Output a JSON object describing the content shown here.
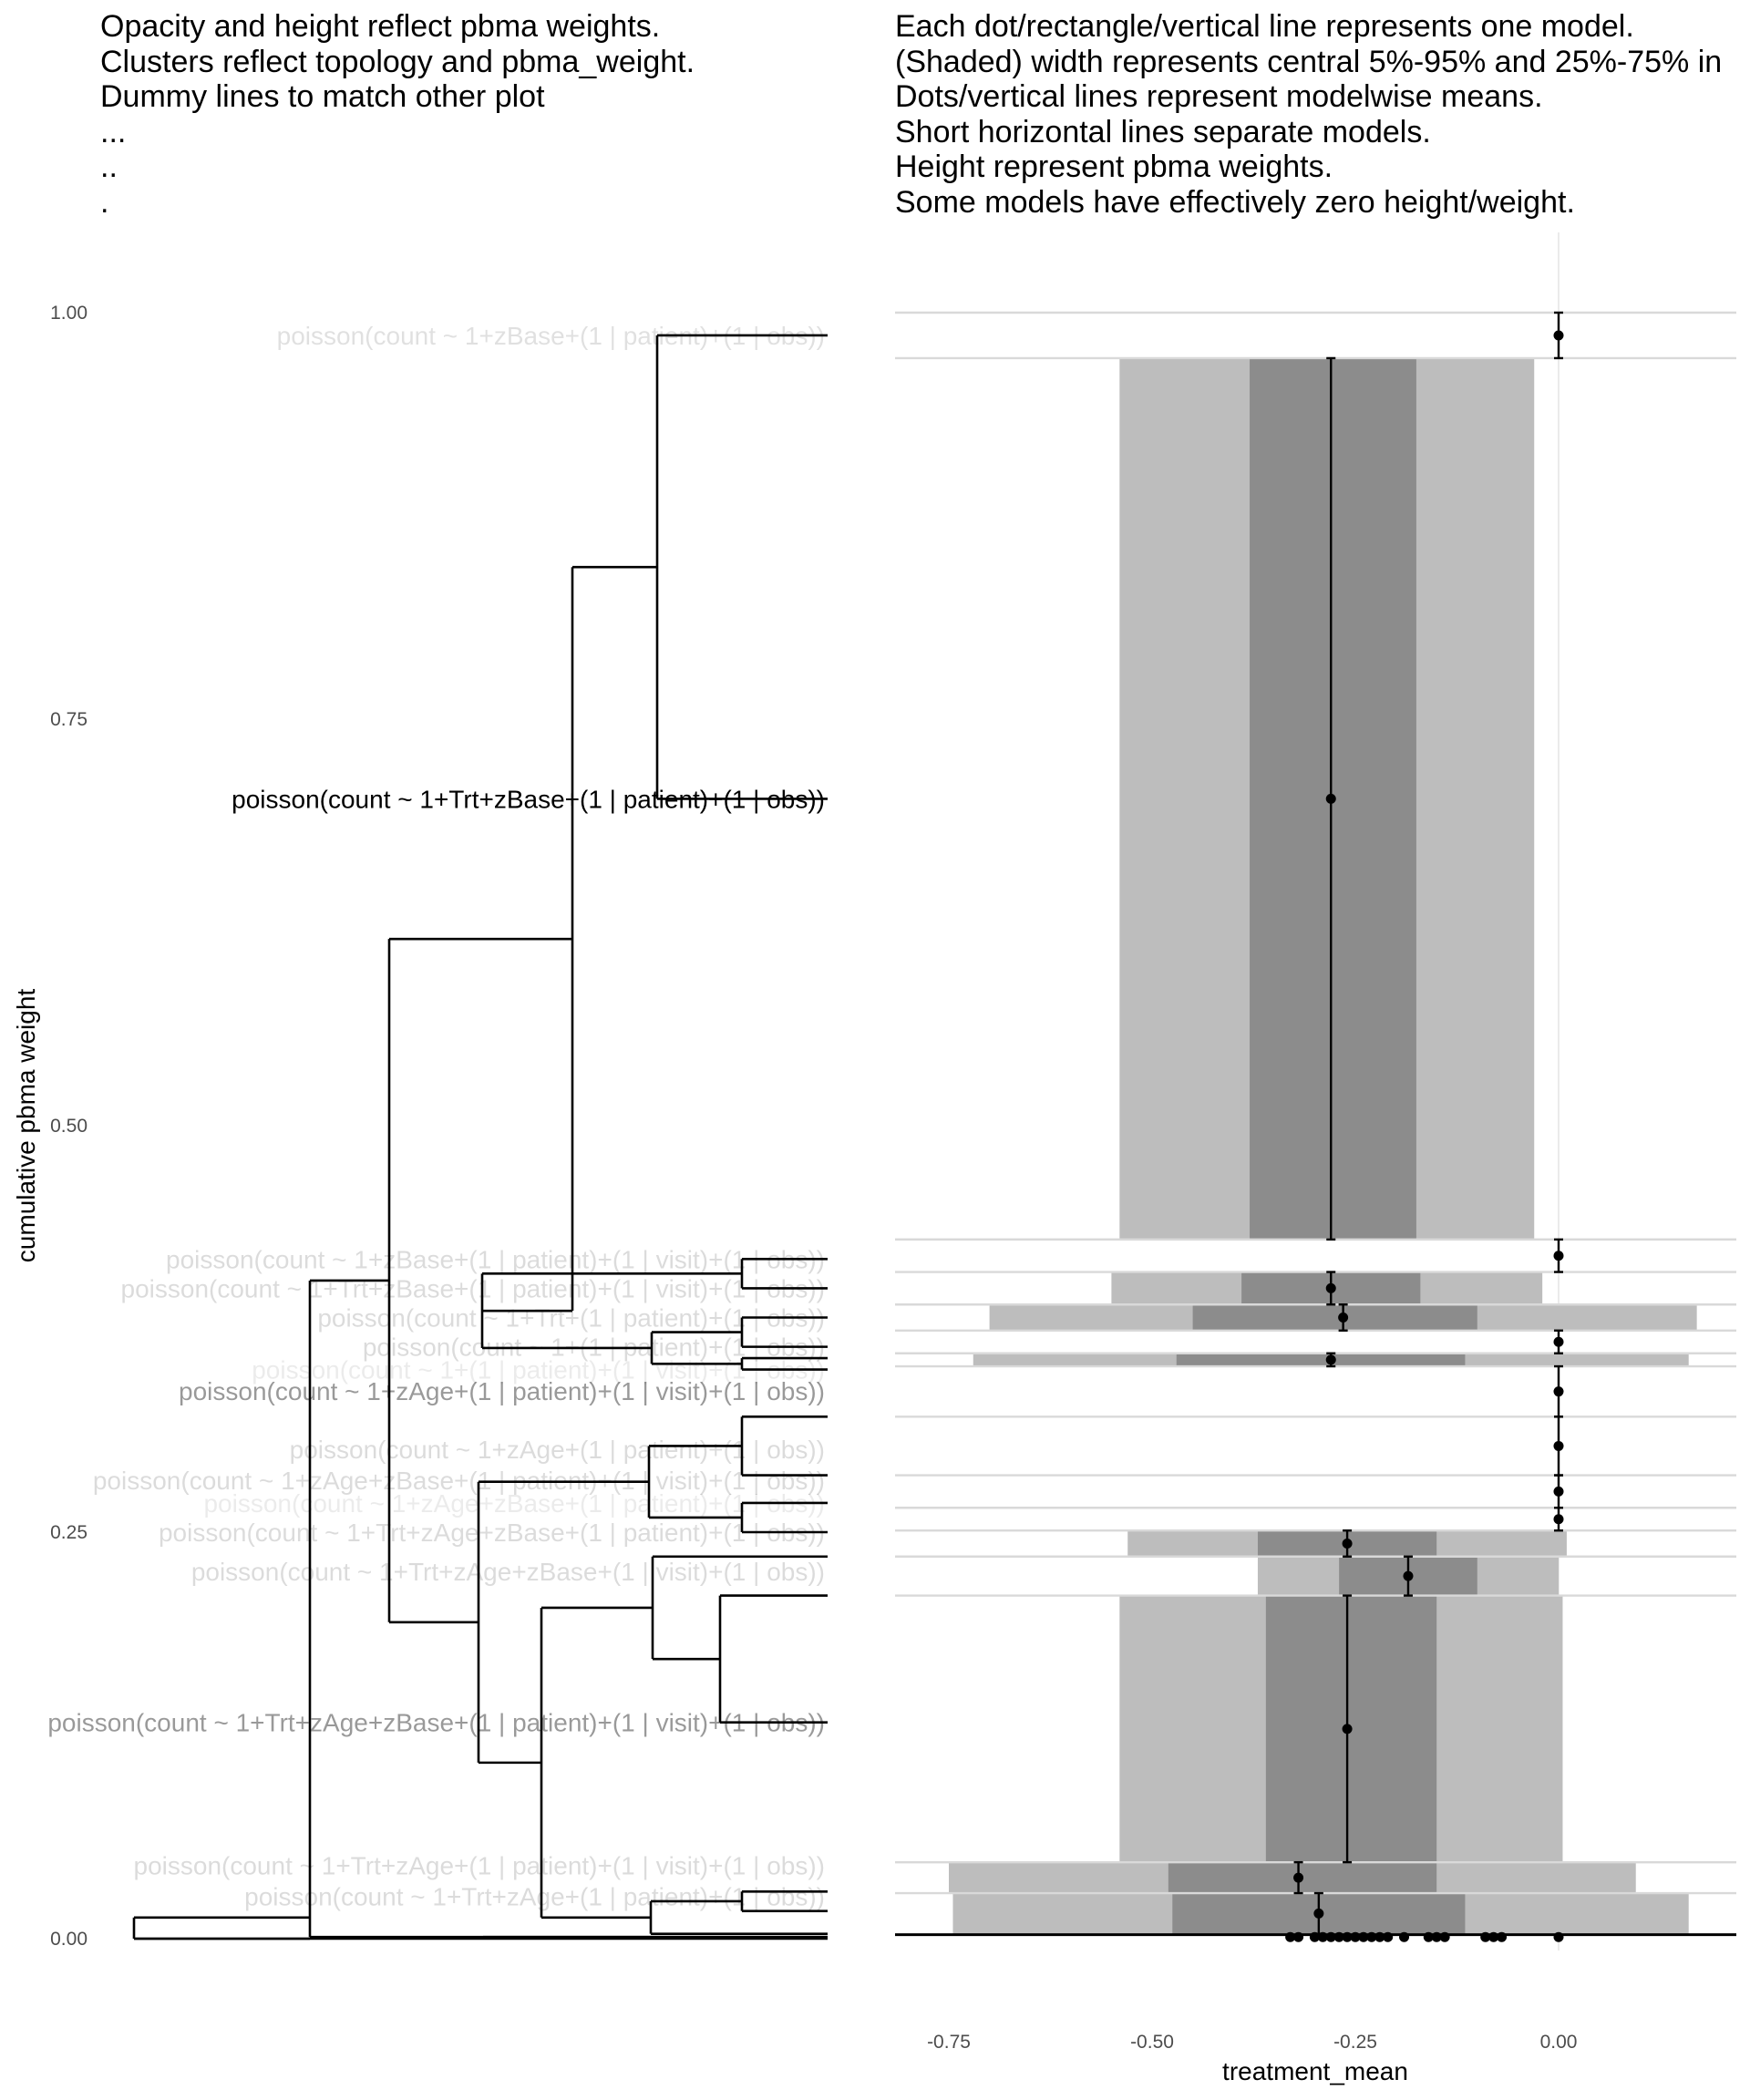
{
  "left_caption": [
    "Opacity and height reflect pbma weights.",
    "Clusters reflect topology and pbma_weight.",
    "Dummy lines to match other plot",
    "...",
    "..",
    "."
  ],
  "right_caption": [
    "Each dot/rectangle/vertical line represents one model.",
    "(Shaded) width represents central 5%-95% and 25%-75% in",
    "Dots/vertical lines represent modelwise means.",
    "Short horizontal lines separate models.",
    "Height represent pbma weights.",
    "Some models have effectively zero height/weight."
  ],
  "chart_data": [
    {
      "type": "dendrogram",
      "ylabel": "cumulative pbma weight",
      "ylim": [
        0,
        1.0
      ],
      "y_ticks": [
        "0.00",
        "0.25",
        "0.50",
        "0.75",
        "1.00"
      ],
      "grid": false,
      "leaves": [
        {
          "label": "poisson(count ~ 1+zBase+(1 | patient)+(1 | obs))",
          "y": 0.986,
          "alpha": 0.12
        },
        {
          "label": "poisson(count ~ 1+Trt+zBase+(1 | patient)+(1 | obs))",
          "y": 0.701,
          "alpha": 1.0
        },
        {
          "label": "poisson(count ~ 1+zBase+(1 | patient)+(1 | visit)+(1 | obs))",
          "y": 0.418,
          "alpha": 0.14
        },
        {
          "label": "poisson(count ~ 1+Trt+zBase+(1 | patient)+(1 | visit)+(1 | obs))",
          "y": 0.4,
          "alpha": 0.14
        },
        {
          "label": "poisson(count ~ 1+Trt+(1 | patient)+(1 | obs))",
          "y": 0.382,
          "alpha": 0.14
        },
        {
          "label": "poisson(count ~ 1+(1 | patient)+(1 | obs))",
          "y": 0.364,
          "alpha": 0.14
        },
        {
          "label": "poisson(count ~ 1+(1 | patient)+(1 | visit)+(1 | obs))",
          "y": 0.35,
          "alpha": 0.08
        },
        {
          "label": "poisson(count ~ 1+zAge+(1 | patient)+(1 | visit)+(1 | obs))",
          "y": 0.337,
          "alpha": 0.4
        },
        {
          "label": "poisson(count ~ 1+zAge+(1 | patient)+(1 | obs))",
          "y": 0.301,
          "alpha": 0.14
        },
        {
          "label": "poisson(count ~ 1+zAge+zBase+(1 | patient)+(1 | visit)+(1 | obs))",
          "y": 0.282,
          "alpha": 0.14
        },
        {
          "label": "poisson(count ~ 1+zAge+zBase+(1 | patient)+(1 | obs))",
          "y": 0.268,
          "alpha": 0.08
        },
        {
          "label": "poisson(count ~ 1+Trt+zAge+zBase+(1 | patient)+(1 | obs))",
          "y": 0.25,
          "alpha": 0.14
        },
        {
          "label": "poisson(count ~ 1+Trt+zAge+zBase+(1 | visit)+(1 | obs))",
          "y": 0.226,
          "alpha": 0.14
        },
        {
          "label": "poisson(count ~ 1+Trt+zAge+zBase+(1 | patient)+(1 | visit)+(1 | obs))",
          "y": 0.133,
          "alpha": 0.4
        },
        {
          "label": "poisson(count ~ 1+Trt+zAge+(1 | patient)+(1 | visit)+(1 | obs))",
          "y": 0.045,
          "alpha": 0.14
        },
        {
          "label": "poisson(count ~ 1+Trt+zAge+(1 | patient)+(1 | obs))",
          "y": 0.026,
          "alpha": 0.14
        }
      ]
    },
    {
      "type": "interval",
      "xlabel": "treatment_mean",
      "xlim": [
        -0.8,
        0.22
      ],
      "ylim": [
        0,
        1.0
      ],
      "x_ticks": [
        "-0.75",
        "-0.50",
        "-0.25",
        "0.00"
      ],
      "grid": true,
      "models": [
        {
          "y0": 0.972,
          "y1": 1.0,
          "q05": 0.0,
          "q25": 0.0,
          "q75": 0.0,
          "q95": 0.0,
          "mean": 0.0
        },
        {
          "y0": 0.43,
          "y1": 0.972,
          "q05": -0.54,
          "q25": -0.38,
          "q75": -0.175,
          "q95": -0.03,
          "mean": -0.28
        },
        {
          "y0": 0.41,
          "y1": 0.43,
          "q05": 0.0,
          "q25": 0.0,
          "q75": 0.0,
          "q95": 0.0,
          "mean": 0.0
        },
        {
          "y0": 0.39,
          "y1": 0.41,
          "q05": -0.55,
          "q25": -0.39,
          "q75": -0.17,
          "q95": -0.02,
          "mean": -0.28
        },
        {
          "y0": 0.374,
          "y1": 0.39,
          "q05": -0.7,
          "q25": -0.45,
          "q75": -0.1,
          "q95": 0.17,
          "mean": -0.265
        },
        {
          "y0": 0.36,
          "y1": 0.374,
          "q05": 0.0,
          "q25": 0.0,
          "q75": 0.0,
          "q95": 0.0,
          "mean": 0.0
        },
        {
          "y0": 0.352,
          "y1": 0.36,
          "q05": -0.72,
          "q25": -0.47,
          "q75": -0.115,
          "q95": 0.16,
          "mean": -0.28
        },
        {
          "y0": 0.321,
          "y1": 0.352,
          "q05": 0.0,
          "q25": 0.0,
          "q75": 0.0,
          "q95": 0.0,
          "mean": 0.0
        },
        {
          "y0": 0.285,
          "y1": 0.321,
          "q05": 0.0,
          "q25": 0.0,
          "q75": 0.0,
          "q95": 0.0,
          "mean": 0.0
        },
        {
          "y0": 0.265,
          "y1": 0.285,
          "q05": 0.0,
          "q25": 0.0,
          "q75": 0.0,
          "q95": 0.0,
          "mean": 0.0
        },
        {
          "y0": 0.251,
          "y1": 0.265,
          "q05": 0.0,
          "q25": 0.0,
          "q75": 0.0,
          "q95": 0.0,
          "mean": 0.0
        },
        {
          "y0": 0.235,
          "y1": 0.251,
          "q05": -0.53,
          "q25": -0.37,
          "q75": -0.15,
          "q95": 0.01,
          "mean": -0.26
        },
        {
          "y0": 0.211,
          "y1": 0.235,
          "q05": -0.37,
          "q25": -0.27,
          "q75": -0.1,
          "q95": 0.0,
          "mean": -0.185
        },
        {
          "y0": 0.047,
          "y1": 0.211,
          "q05": -0.54,
          "q25": -0.36,
          "q75": -0.15,
          "q95": 0.005,
          "mean": -0.26
        },
        {
          "y0": 0.028,
          "y1": 0.047,
          "q05": -0.75,
          "q25": -0.48,
          "q75": -0.15,
          "q95": 0.095,
          "mean": -0.32
        },
        {
          "y0": 0.003,
          "y1": 0.028,
          "q05": -0.745,
          "q25": -0.475,
          "q75": -0.115,
          "q95": 0.16,
          "mean": -0.295
        }
      ],
      "zero_weight_means": [
        -0.33,
        -0.32,
        -0.3,
        -0.29,
        -0.28,
        -0.27,
        -0.26,
        -0.25,
        -0.24,
        -0.23,
        -0.22,
        -0.21,
        -0.19,
        -0.16,
        -0.15,
        -0.14,
        -0.09,
        -0.08,
        -0.07,
        0.0
      ]
    }
  ]
}
